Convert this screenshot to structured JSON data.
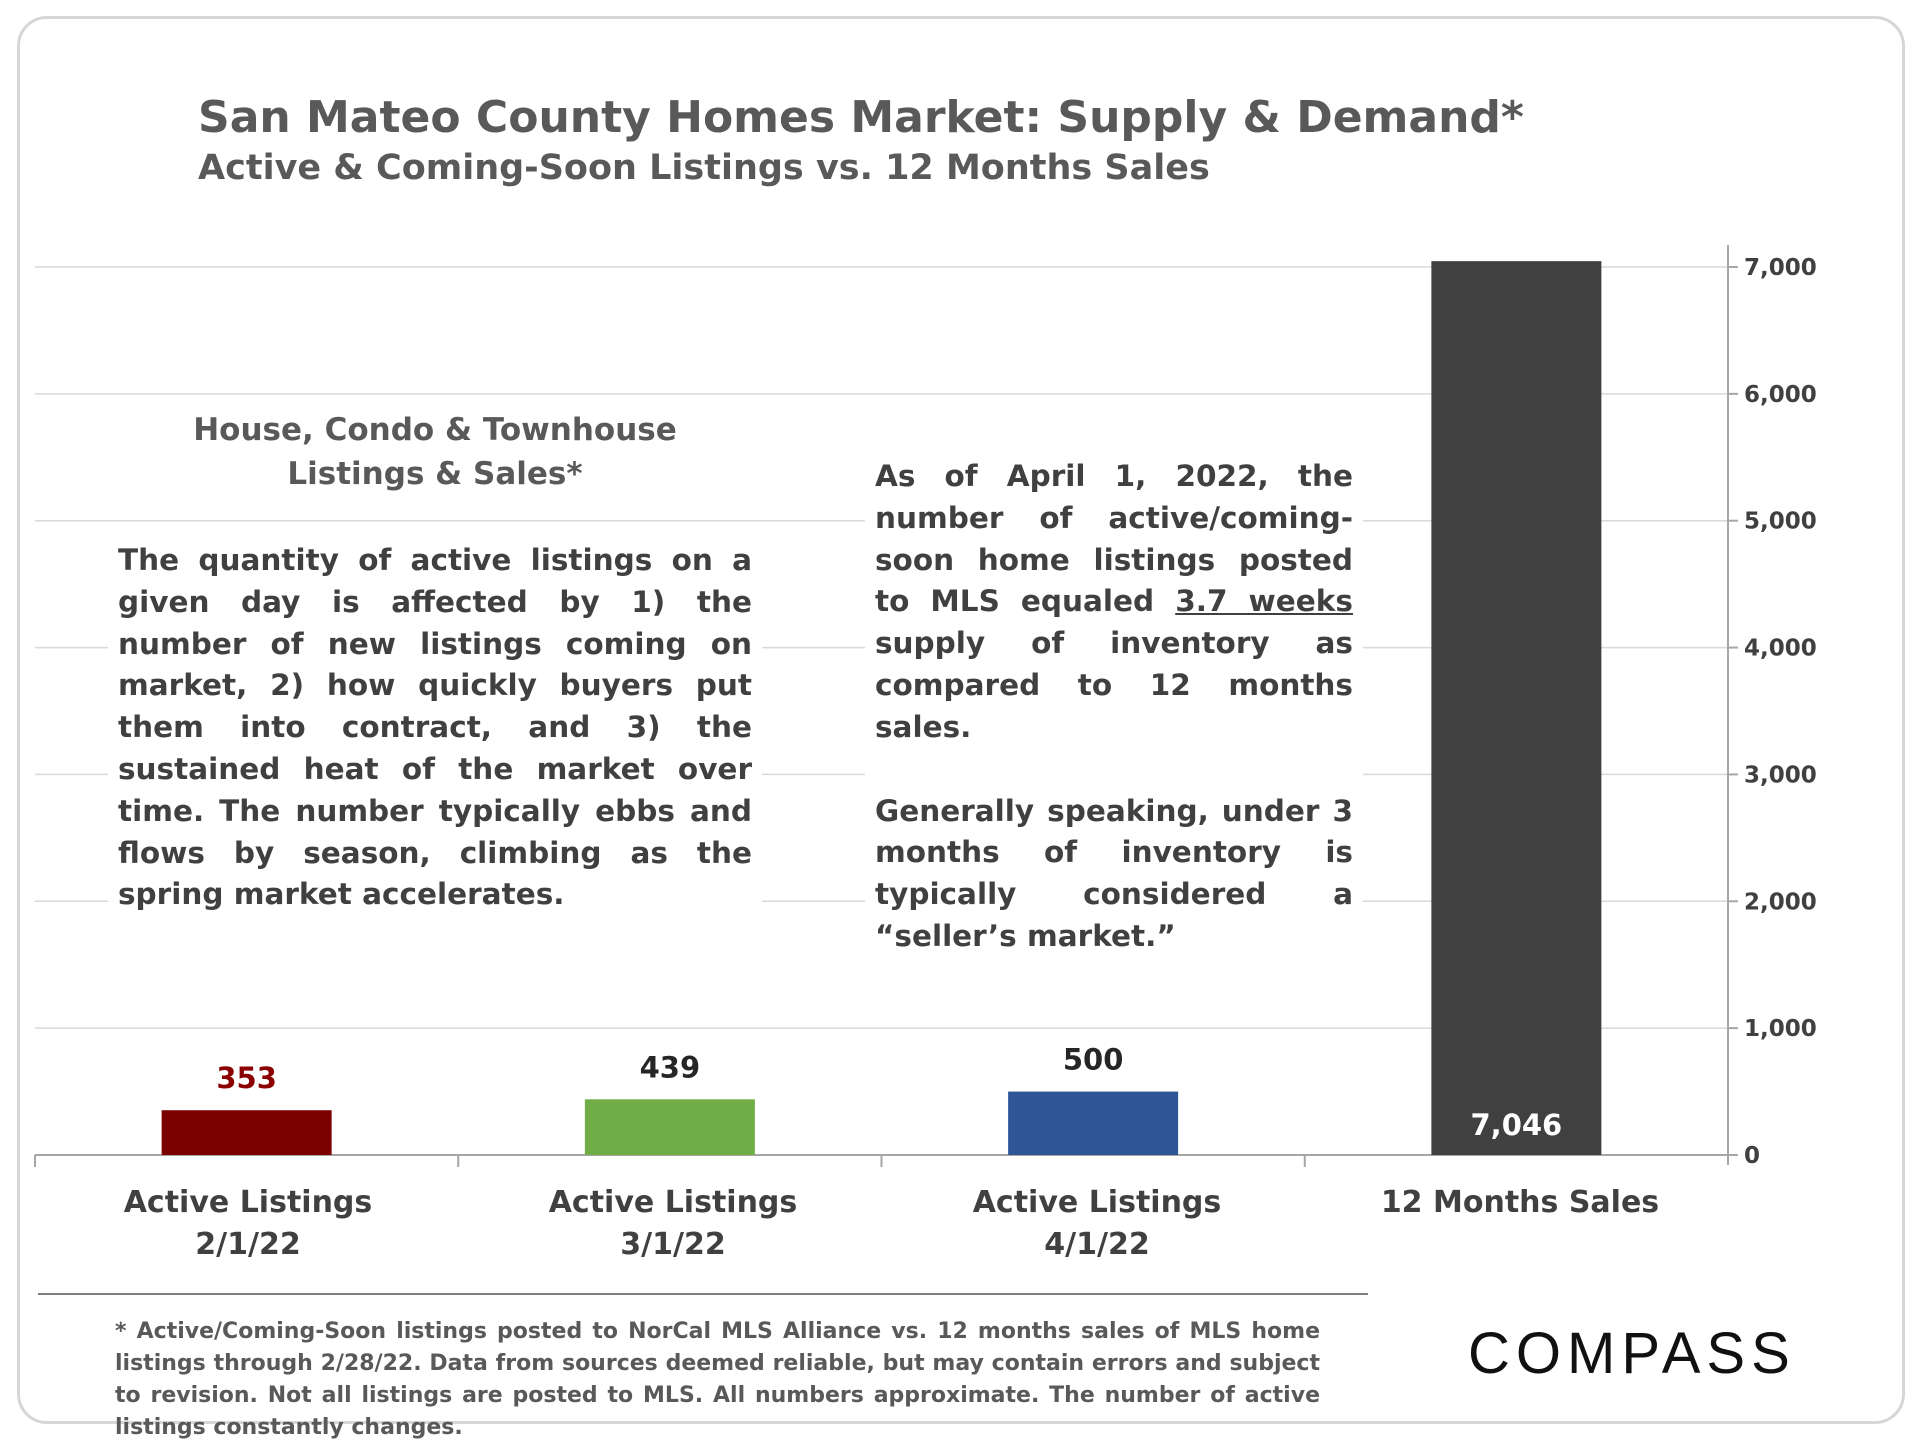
{
  "title": "San Mateo County Homes Market: Supply & Demand*",
  "subtitle": "Active & Coming-Soon Listings vs. 12 Months Sales",
  "left_box": {
    "heading_line1": "House, Condo & Townhouse",
    "heading_line2": "Listings & Sales*",
    "body": "The quantity of active listings on a given day is affected by 1) the number of new listings coming on market, 2) how quickly buyers put them into contract, and 3) the sustained heat of the market over time. The number typically ebbs and flows by season, climbing as the spring market accelerates."
  },
  "right_box": {
    "para1_before": "As of April 1, 2022, the number of active/coming-soon home listings posted to MLS equaled",
    "para1_underlined": "3.7 weeks",
    "para1_after": " supply of inventory as compared to 12 months sales.",
    "para2": "Generally speaking, under 3 months of inventory is typically considered a “seller’s market.”"
  },
  "footnote": "* Active/Coming-Soon listings posted to NorCal MLS Alliance vs. 12 months sales of MLS home listings through 2/28/22.  Data from sources deemed reliable, but may contain errors and subject to revision.  Not all listings are posted to MLS. All numbers approximate. The number of active listings constantly changes.",
  "logo": "COMPASS",
  "chart_data": {
    "type": "bar",
    "categories": [
      {
        "line1": "Active Listings",
        "line2": "2/1/22"
      },
      {
        "line1": "Active Listings",
        "line2": "3/1/22"
      },
      {
        "line1": "Active Listings",
        "line2": "4/1/22"
      },
      {
        "line1": "12 Months Sales",
        "line2": ""
      }
    ],
    "values": [
      353,
      439,
      500,
      7046
    ],
    "value_labels": [
      "353",
      "439",
      "500",
      "7,046"
    ],
    "bar_colors": [
      "#7b0000",
      "#70ad47",
      "#2f5597",
      "#404040"
    ],
    "label_colors": [
      "#8b0000",
      "#262626",
      "#262626",
      "#ffffff"
    ],
    "ylim": [
      0,
      7000
    ],
    "yticks": [
      0,
      1000,
      2000,
      3000,
      4000,
      5000,
      6000,
      7000
    ],
    "ytick_labels": [
      "0",
      "1,000",
      "2,000",
      "3,000",
      "4,000",
      "5,000",
      "6,000",
      "7,000"
    ],
    "y_axis_side": "right",
    "grid": true
  }
}
